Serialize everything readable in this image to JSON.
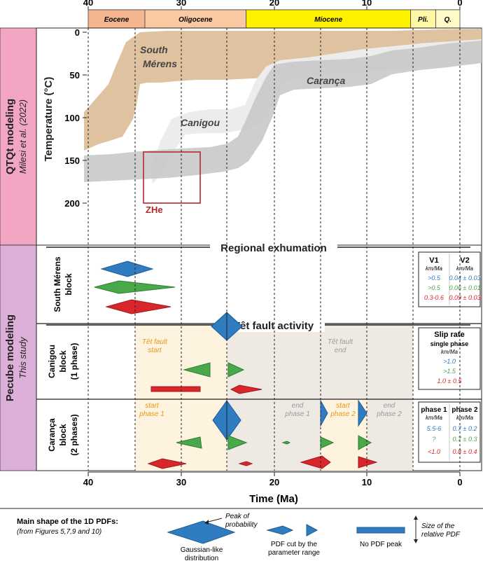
{
  "colors": {
    "eocene": "#f5b58e",
    "oligocene": "#f9c9a2",
    "miocene": "#fff200",
    "pliocene": "#fff6a6",
    "quaternary": "#fff9c8",
    "side_top": "#f2a6c3",
    "side_bottom": "#dcb0d8",
    "south_merens_band": "#dfc2a0",
    "canigou_band": "#ececec",
    "caranca_band": "#c9c9c9",
    "zhe": "#b5272d",
    "blue": "#2f7cc0",
    "green": "#49a84a",
    "red": "#d9262b",
    "orange_text": "#e59a16",
    "grey_text": "#9a9a9a",
    "cream": "#fdf3de",
    "beige": "#efe9e4"
  },
  "time_axis": {
    "top_ticks": [
      "40",
      "30",
      "20",
      "10",
      "0"
    ],
    "bottom_ticks": [
      "40",
      "30",
      "20",
      "10",
      "0"
    ],
    "xlabel": "Time (Ma)"
  },
  "epochs": [
    {
      "name": "Eocene",
      "start": 40,
      "end": 33.9
    },
    {
      "name": "Oligocene",
      "start": 33.9,
      "end": 23
    },
    {
      "name": "Miocene",
      "start": 23,
      "end": 5.3
    },
    {
      "name": "Pli.",
      "start": 5.3,
      "end": 2.6
    },
    {
      "name": "Q.",
      "start": 2.6,
      "end": 0
    }
  ],
  "qtqt": {
    "side_title": "QTQt modeling",
    "side_sub": "Milesi et al. (2022)",
    "ylabel": "Temperature (°C)",
    "y_ticks": [
      "0",
      "50",
      "100",
      "150",
      "200"
    ],
    "labels": {
      "south": "South",
      "merens": "Mérens",
      "canigou": "Canigou",
      "caranca": "Carança",
      "zhe": "ZHe"
    }
  },
  "pecube": {
    "side_title": "Pecube modeling",
    "side_sub": "This study",
    "headings": {
      "regional": "Regional exhumation",
      "tet": "Têt fault activity"
    },
    "blocks": {
      "south": [
        "South Mérens",
        "block"
      ],
      "canigou": [
        "Canigou",
        "block",
        "(1 phase)"
      ],
      "caranca": [
        "Carança",
        "block",
        "(2 phases)"
      ]
    },
    "annotations": {
      "tet_start": [
        "Têt fault",
        "start"
      ],
      "tet_end": [
        "Têt fault",
        "end"
      ],
      "start1": [
        "start",
        "phase 1"
      ],
      "end1": [
        "end",
        "phase 1"
      ],
      "start2": [
        "start",
        "phase 2"
      ],
      "end2": [
        "end",
        "phase 2"
      ]
    }
  },
  "tables": {
    "south": {
      "col1": "V1",
      "col2": "V2",
      "unit": "km/Ma",
      "col1_values": [
        ">0.5",
        ">0.5",
        "0.3-0.6"
      ],
      "col2_values": [
        "0.04 ± 0.03",
        "0.06 ± 0.01",
        "0.09 ± 0.03"
      ]
    },
    "canigou": {
      "title": "Slip rate",
      "sub": "single phase",
      "unit": "km/Ma",
      "values": [
        ">1.0",
        ">1.5",
        "1.0 ± 0.5"
      ]
    },
    "caranca": {
      "col1": "phase 1",
      "col2": "phase 2",
      "unit": "km/Ma",
      "col1_values": [
        "5.5-6",
        "?",
        "<1.0"
      ],
      "col2_values": [
        "0.7 ± 0.2",
        "0.7 ± 0.3",
        "0.8 ± 0.4"
      ]
    }
  },
  "legend": {
    "title": "Main shape of the 1D PDFs:",
    "subtitle": "(from Figures 5,7,9 and 10)",
    "peak": [
      "Peak of",
      "probability"
    ],
    "gauss": [
      "Gaussian-like",
      "distribution"
    ],
    "cut": [
      "PDF cut by the",
      "parameter range"
    ],
    "nopeak": "No PDF peak",
    "size": [
      "Size of the",
      "relative PDF"
    ]
  }
}
